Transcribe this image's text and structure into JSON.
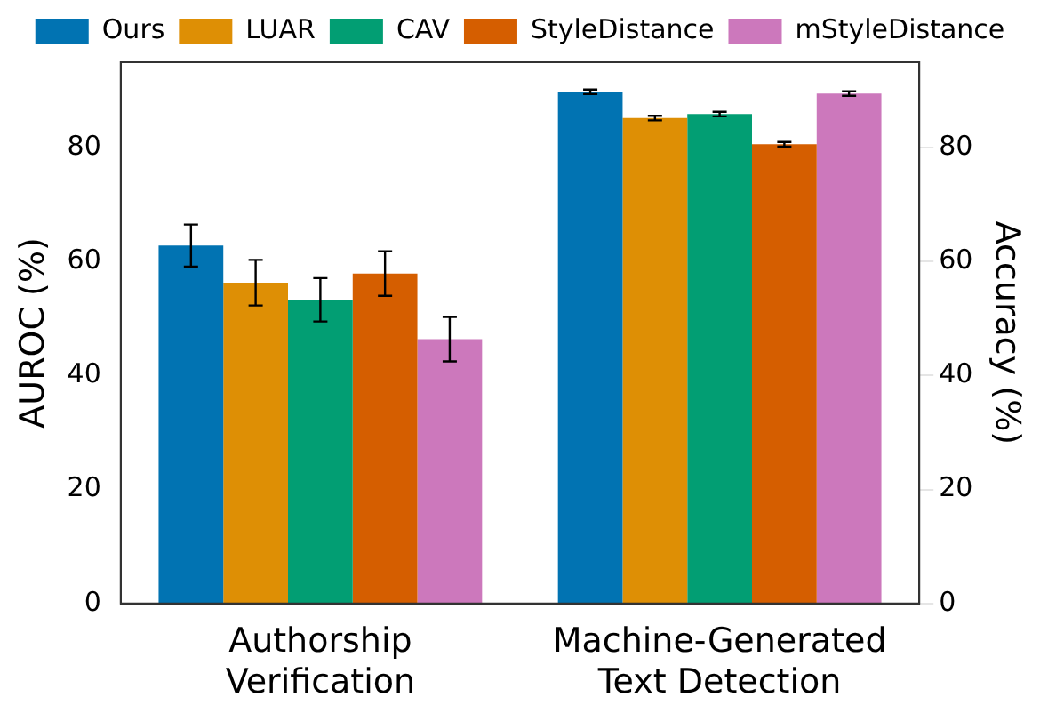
{
  "chart_data": {
    "type": "bar",
    "categories": [
      "Authorship\nVerification",
      "Machine-Generated\nText Detection"
    ],
    "ylabel": "AUROC (%)",
    "y2label": "Accuracy (%)",
    "series": [
      {
        "name": "Ours",
        "color": "#0173b2",
        "values": [
          62.8,
          89.8
        ],
        "errors": [
          3.7,
          0.4
        ]
      },
      {
        "name": "LUAR",
        "color": "#de8f05",
        "values": [
          56.3,
          85.2
        ],
        "errors": [
          4.0,
          0.4
        ]
      },
      {
        "name": "CAV",
        "color": "#029e73",
        "values": [
          53.3,
          85.9
        ],
        "errors": [
          3.8,
          0.4
        ]
      },
      {
        "name": "StyleDistance",
        "color": "#d55e00",
        "values": [
          57.9,
          80.6
        ],
        "errors": [
          3.9,
          0.4
        ]
      },
      {
        "name": "mStyleDistance",
        "color": "#cc78bc",
        "values": [
          46.4,
          89.5
        ],
        "errors": [
          3.9,
          0.4
        ]
      }
    ],
    "ylim": [
      0,
      95
    ],
    "yticks": [
      0,
      20,
      40,
      60,
      80
    ],
    "y2lim": [
      0,
      95
    ],
    "y2ticks": [
      0,
      20,
      40,
      60,
      80
    ],
    "grid": false,
    "legend": "top"
  }
}
